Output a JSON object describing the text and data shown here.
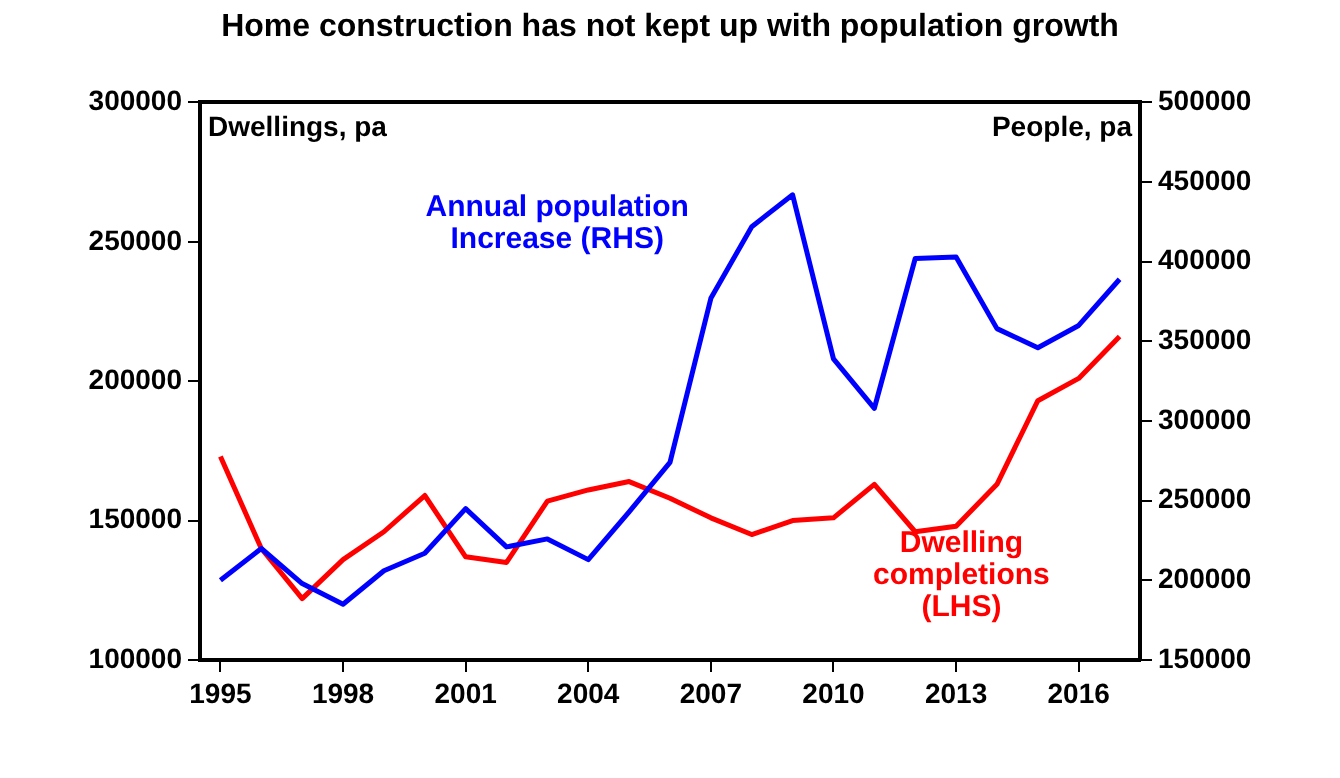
{
  "chart_data": {
    "type": "line",
    "title": "Home construction has not kept up with population growth",
    "ylabel": "Dwellings, pa",
    "y2label": "People, pa",
    "x": [
      1995,
      1996,
      1997,
      1998,
      1999,
      2000,
      2001,
      2002,
      2003,
      2004,
      2005,
      2006,
      2007,
      2008,
      2009,
      2010,
      2011,
      2012,
      2013,
      2014,
      2015,
      2016,
      2017
    ],
    "series": [
      {
        "name": "Annual population Increase (RHS)",
        "color": "#0000ff",
        "axis": "y2",
        "values": [
          200000,
          220000,
          198000,
          185000,
          206000,
          217000,
          245000,
          221000,
          226000,
          213000,
          243000,
          274000,
          377000,
          422000,
          442000,
          339000,
          308000,
          402000,
          403000,
          358000,
          346000,
          360000,
          389000
        ]
      },
      {
        "name": "Dwelling completions (LHS)",
        "color": "#ff0000",
        "values": [
          173000,
          140000,
          122000,
          136000,
          146000,
          159000,
          137000,
          135000,
          157000,
          161000,
          164000,
          158000,
          151000,
          145000,
          150000,
          151000,
          163000,
          146000,
          148000,
          163000,
          193000,
          201000,
          216000
        ]
      }
    ],
    "xlim": [
      1994.5,
      2017.5
    ],
    "xticks": [
      1995,
      1998,
      2001,
      2004,
      2007,
      2010,
      2013,
      2016
    ],
    "ylim": [
      100000,
      300000
    ],
    "yticks": [
      100000,
      150000,
      200000,
      250000,
      300000
    ],
    "y2lim": [
      150000,
      500000
    ],
    "y2ticks": [
      150000,
      200000,
      250000,
      300000,
      350000,
      400000,
      450000,
      500000
    ],
    "grid": false,
    "legend": false,
    "marker": "none",
    "line_style": "solid"
  }
}
